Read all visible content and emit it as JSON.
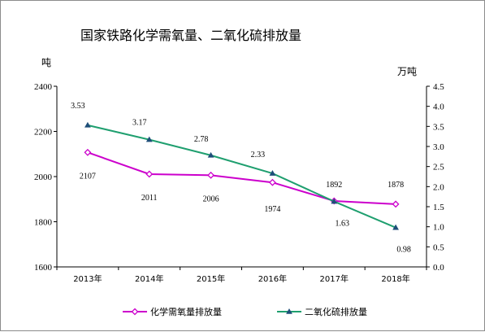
{
  "chart_data": {
    "type": "line",
    "title": "国家铁路化学需氧量、二氧化硫排放量",
    "categories": [
      "2013年",
      "2014年",
      "2015年",
      "2016年",
      "2017年",
      "2018年"
    ],
    "y_left": {
      "unit": "吨",
      "range": [
        1600,
        2400
      ],
      "ticks": [
        "1600",
        "1800",
        "2000",
        "2200",
        "2400"
      ]
    },
    "y_right": {
      "unit": "万吨",
      "range": [
        0,
        4.5
      ],
      "ticks": [
        "0.0",
        "0.5",
        "1.0",
        "1.5",
        "2.0",
        "2.5",
        "3.0",
        "3.5",
        "4.0",
        "4.5"
      ]
    },
    "grid": false,
    "legend_position": "bottom",
    "series": [
      {
        "name": "化学需氧量排放量",
        "axis": "left",
        "color": "#cc00cc",
        "marker": "diamond",
        "values": [
          2107,
          2011,
          2006,
          1974,
          1892,
          1878
        ],
        "labels": [
          "2107",
          "2011",
          "2006",
          "1974",
          "1892",
          "1878"
        ]
      },
      {
        "name": "二氧化硫排放量",
        "axis": "right",
        "color": "#1f9f6f",
        "marker": "triangle",
        "values": [
          3.53,
          3.17,
          2.78,
          2.33,
          1.63,
          0.98
        ],
        "labels": [
          "3.53",
          "3.17",
          "2.78",
          "2.33",
          "1.63",
          "0.98"
        ]
      }
    ]
  }
}
